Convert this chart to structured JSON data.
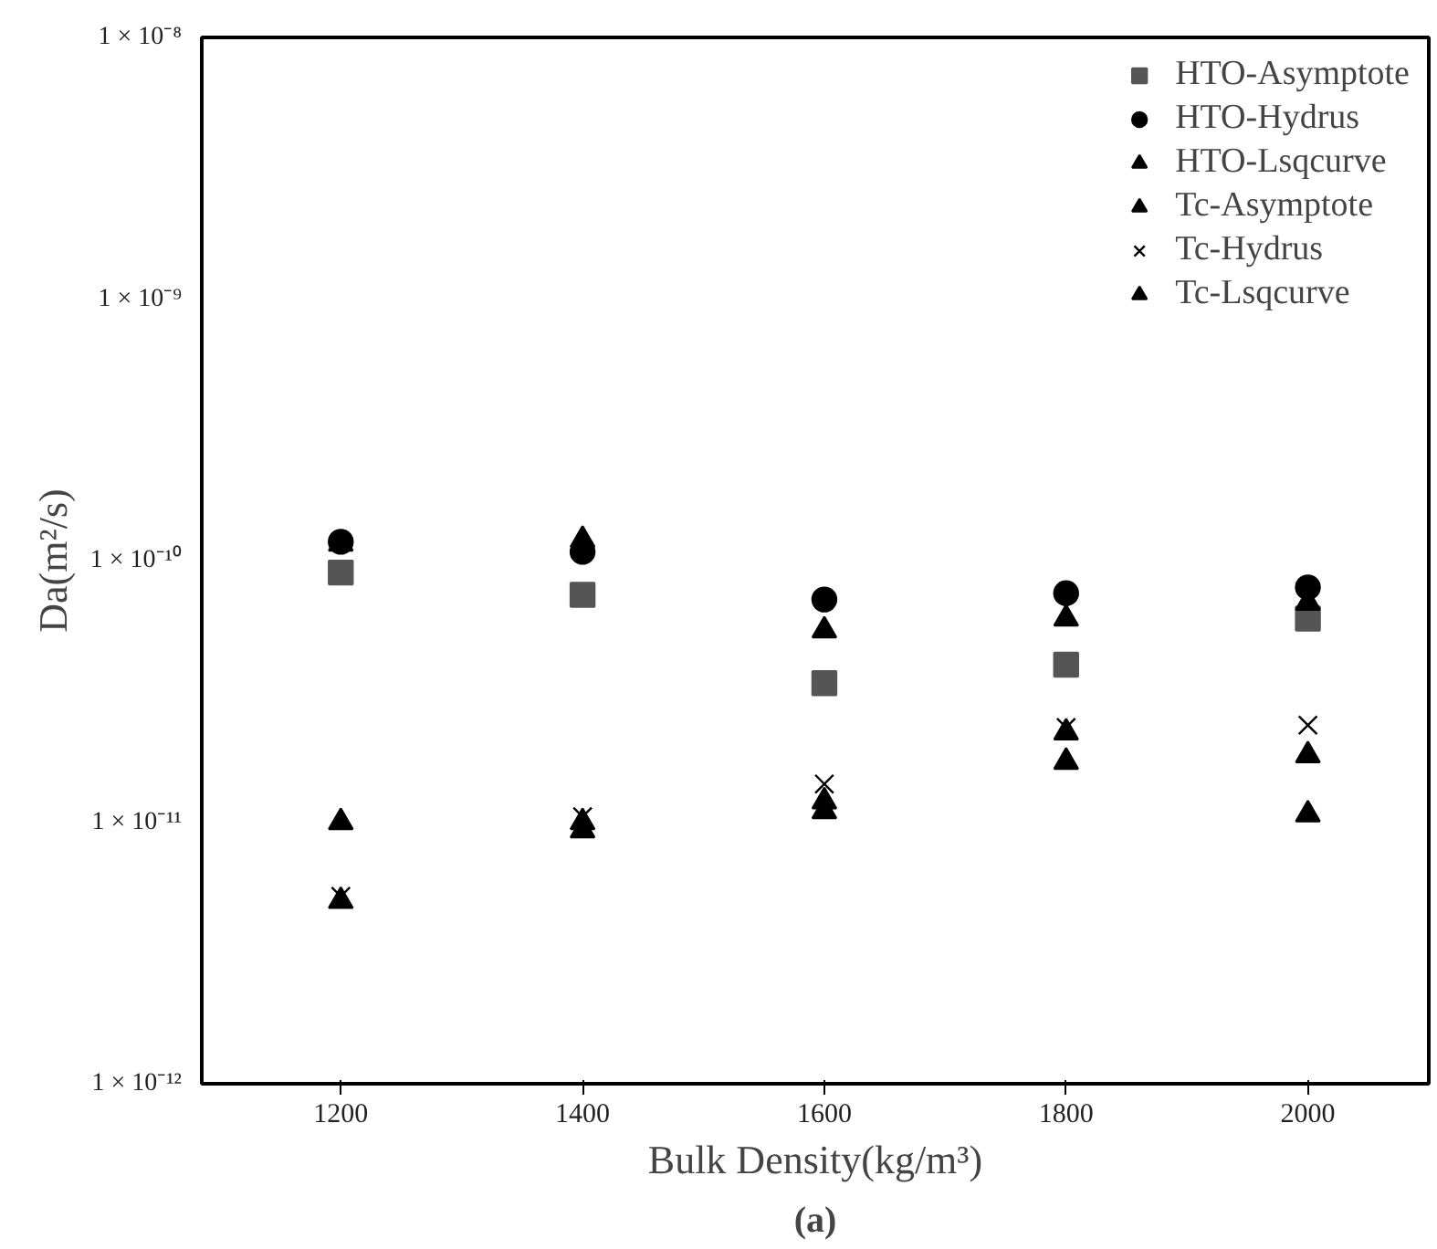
{
  "chart_data": {
    "type": "scatter",
    "xlabel": "Bulk Density(kg/m³)",
    "ylabel": "Da(m²/s)",
    "annotations": [
      "(a)"
    ],
    "x": [
      1200,
      1400,
      1600,
      1800,
      2000
    ],
    "xlim": [
      1085,
      2100
    ],
    "xticks": [
      1200,
      1400,
      1600,
      1800,
      2000
    ],
    "ylim": [
      1e-12,
      1e-08
    ],
    "log": "y",
    "yticks": [
      {
        "value": 1e-12,
        "label": "1 × 10⁻¹²"
      },
      {
        "value": 1e-11,
        "label": "1 × 10⁻¹¹"
      },
      {
        "value": 1e-10,
        "label": "1 × 10⁻¹⁰"
      },
      {
        "value": 1e-09,
        "label": "1 × 10⁻⁹"
      },
      {
        "value": 1e-08,
        "label": "1 × 10⁻⁸"
      }
    ],
    "grid": false,
    "legend": "top right",
    "series": [
      {
        "name": "HTO-Asymptote",
        "color": "#555555",
        "marker": "square",
        "values": [
          9e-11,
          7.4e-11,
          3.4e-11,
          4e-11,
          6e-11
        ]
      },
      {
        "name": "HTO-Hydrus",
        "color": "#000000",
        "marker": "circle",
        "values": [
          1.18e-10,
          1.08e-10,
          7.1e-11,
          7.5e-11,
          7.9e-11
        ]
      },
      {
        "name": "HTO-Lsqcurve",
        "color": "#000000",
        "marker": "triangle",
        "values": [
          1.16e-10,
          1.2e-10,
          5.4e-11,
          6e-11,
          6.9e-11
        ]
      },
      {
        "name": "Tc-Asymptote",
        "color": "#000000",
        "marker": "triangle",
        "values": [
          5e-12,
          9.3e-12,
          1.1e-11,
          1.7e-11,
          1.8e-11
        ]
      },
      {
        "name": "Tc-Hydrus",
        "color": "#000000",
        "marker": "cross",
        "values": [
          5.2e-12,
          1.05e-11,
          1.4e-11,
          2.3e-11,
          2.35e-11
        ]
      },
      {
        "name": "Tc-Lsqcurve",
        "color": "#000000",
        "marker": "triangle",
        "values": [
          1e-11,
          1e-11,
          1.2e-11,
          2.2e-11,
          1.07e-11
        ]
      }
    ]
  }
}
